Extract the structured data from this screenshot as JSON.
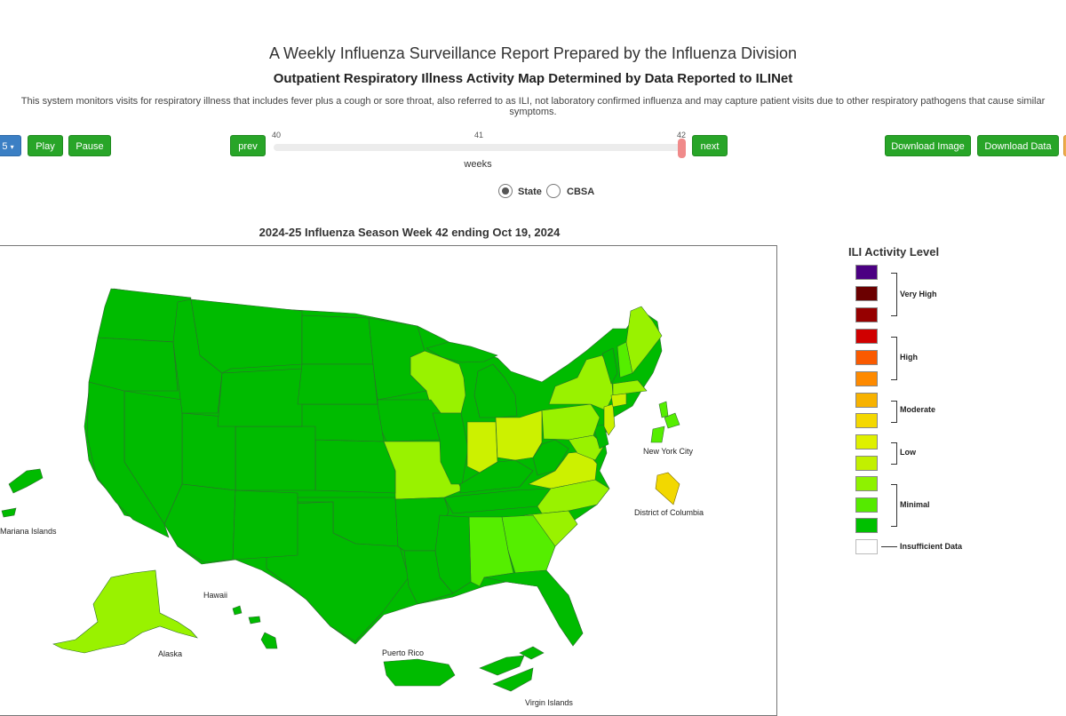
{
  "header": {
    "title": "A Weekly Influenza Surveillance Report Prepared by the Influenza Division",
    "subtitle": "Outpatient Respiratory Illness Activity Map Determined by Data Reported to ILINet",
    "description": "This system monitors visits for respiratory illness that includes fever plus a cough or sore throat, also referred to as ILI, not laboratory confirmed influenza and may capture patient visits due to other respiratory pathogens that cause similar symptoms."
  },
  "controls": {
    "season_dropdown_label": "5",
    "play_label": "Play",
    "pause_label": "Pause",
    "prev_label": "prev",
    "next_label": "next",
    "download_image_label": "Download Image",
    "download_data_label": "Download Data",
    "slider": {
      "min": "40",
      "mid": "41",
      "max": "42",
      "value": 42,
      "axis_label": "weeks"
    },
    "view_options": [
      {
        "label": "State",
        "selected": true
      },
      {
        "label": "CBSA",
        "selected": false
      }
    ]
  },
  "map": {
    "title": "2024-25 Influenza Season Week 42 ending Oct 19, 2024",
    "labels": {
      "new_york_city": "New York City",
      "district_of_columbia": "District of Columbia",
      "mariana_islands": "Mariana Islands",
      "hawaii": "Hawaii",
      "alaska": "Alaska",
      "puerto_rico": "Puerto Rico",
      "virgin_islands": "Virgin Islands"
    },
    "colors": {
      "minimal_dark": "#00bb00",
      "minimal_mid": "#55ee00",
      "minimal_light": "#99f200",
      "low_light": "#ccf100",
      "low_dark": "#e0f000",
      "moderate": "#f2d800"
    }
  },
  "legend": {
    "title": "ILI Activity Level",
    "groups": [
      {
        "label": "Very High",
        "colors": [
          "#4b0082",
          "#6b0000",
          "#960000"
        ]
      },
      {
        "label": "High",
        "colors": [
          "#d00000",
          "#fa5a00",
          "#fe8a00"
        ]
      },
      {
        "label": "Moderate",
        "colors": [
          "#f7b200",
          "#f4d800"
        ]
      },
      {
        "label": "Low",
        "colors": [
          "#dff000",
          "#c2f000"
        ]
      },
      {
        "label": "Minimal",
        "colors": [
          "#8ef200",
          "#55ea00",
          "#00c000"
        ]
      },
      {
        "label": "Insufficient Data",
        "colors": [
          "#ffffff"
        ]
      }
    ]
  }
}
